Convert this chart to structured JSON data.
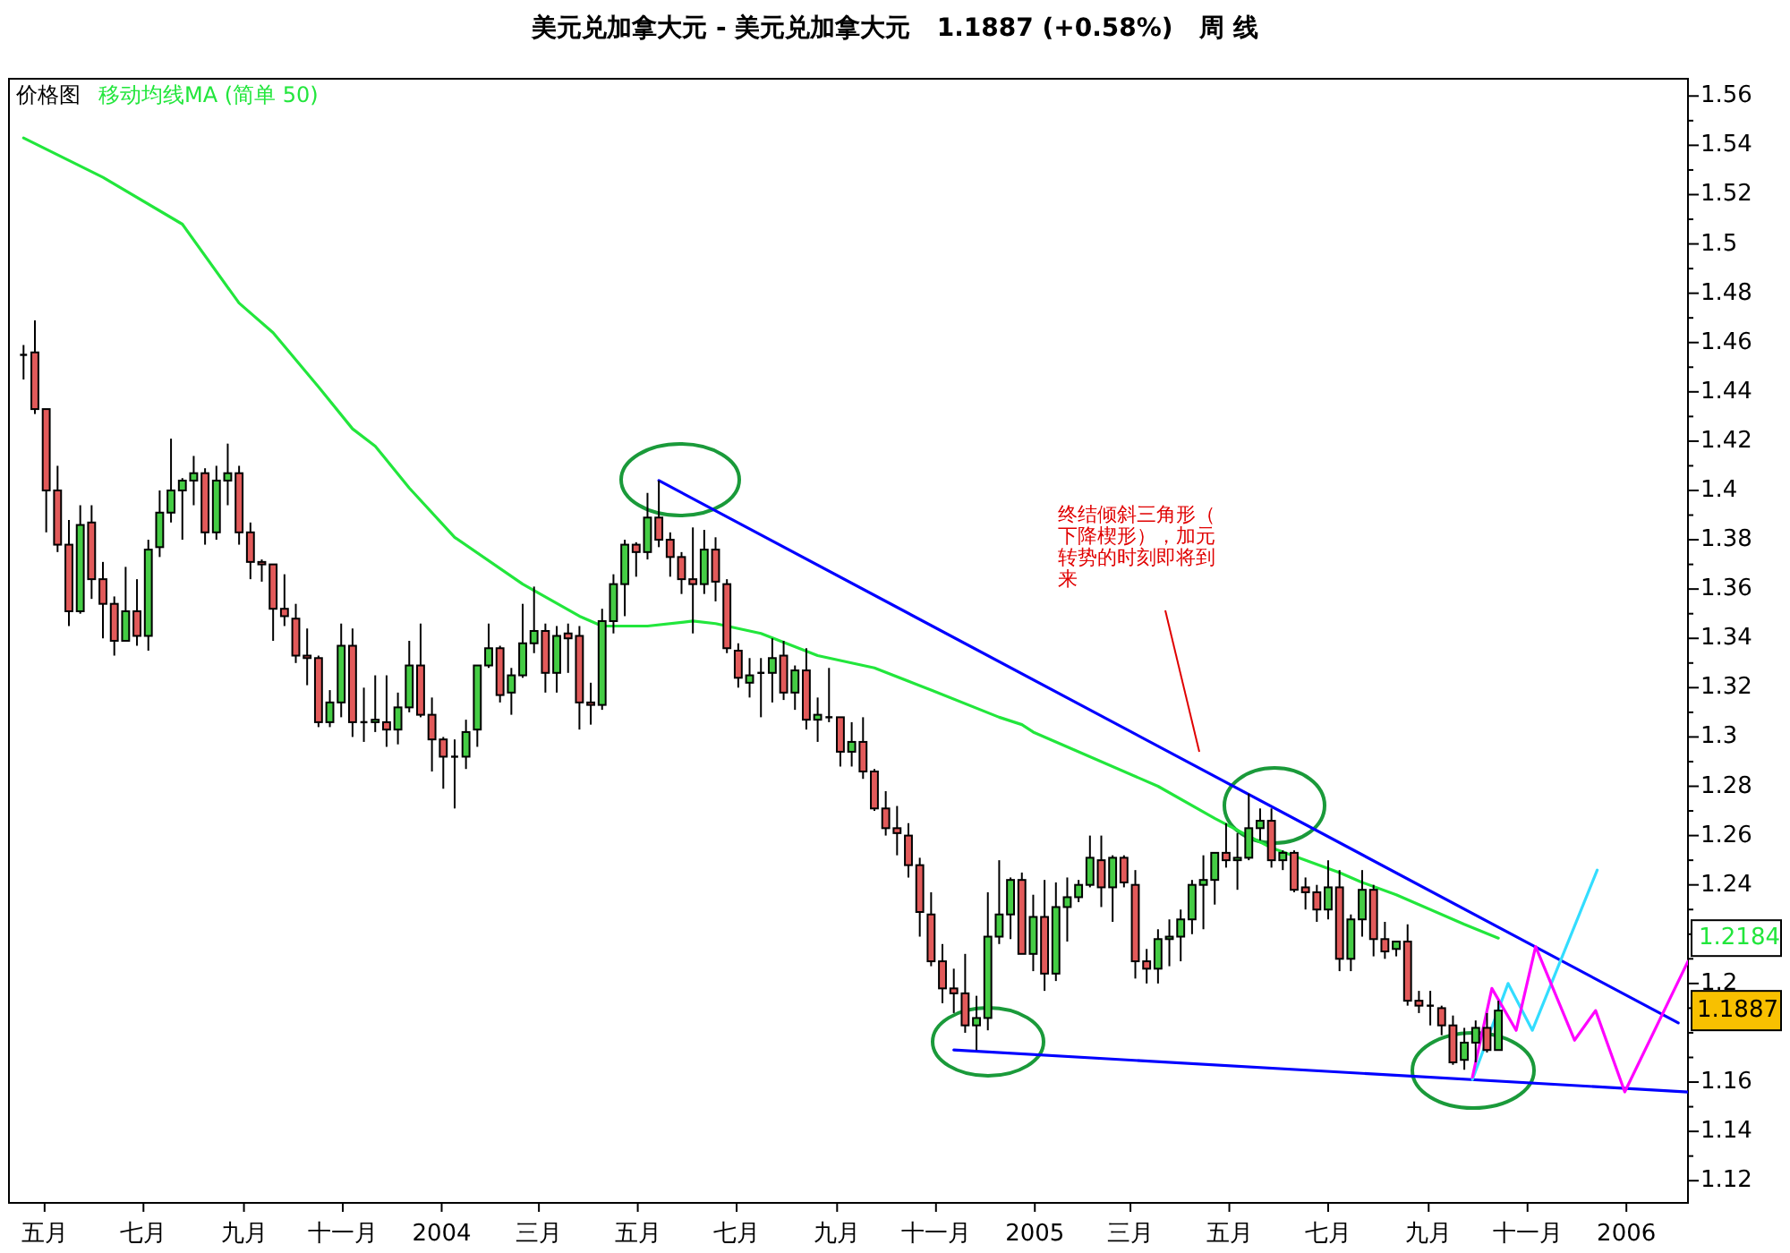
{
  "chart_data": {
    "type": "candlestick",
    "title": "美元兑加拿大元 - 美元兑加拿大元   1.1887 (+0.58%)   周 线",
    "x": [
      "2003-04-18",
      "2003-04-25",
      "2003-05-02",
      "2003-05-09",
      "2003-05-16",
      "2003-05-23",
      "2003-05-30",
      "2003-06-06",
      "2003-06-13",
      "2003-06-20",
      "2003-06-27",
      "2003-07-04",
      "2003-07-11",
      "2003-07-18",
      "2003-07-25",
      "2003-08-01",
      "2003-08-08",
      "2003-08-15",
      "2003-08-22",
      "2003-08-29",
      "2003-09-05",
      "2003-09-12",
      "2003-09-19",
      "2003-09-26",
      "2003-10-03",
      "2003-10-10",
      "2003-10-17",
      "2003-10-24",
      "2003-10-31",
      "2003-11-07",
      "2003-11-14",
      "2003-11-21",
      "2003-11-28",
      "2003-12-05",
      "2003-12-12",
      "2003-12-19",
      "2003-12-26",
      "2004-01-02",
      "2004-01-09",
      "2004-01-16",
      "2004-01-23",
      "2004-01-30",
      "2004-02-06",
      "2004-02-13",
      "2004-02-20",
      "2004-02-27",
      "2004-03-05",
      "2004-03-12",
      "2004-03-19",
      "2004-03-26",
      "2004-04-02",
      "2004-04-09",
      "2004-04-16",
      "2004-04-23",
      "2004-04-30",
      "2004-05-07",
      "2004-05-14",
      "2004-05-21",
      "2004-05-28",
      "2004-06-04",
      "2004-06-11",
      "2004-06-18",
      "2004-06-25",
      "2004-07-02",
      "2004-07-09",
      "2004-07-16",
      "2004-07-23",
      "2004-07-30",
      "2004-08-06",
      "2004-08-13",
      "2004-08-20",
      "2004-08-27",
      "2004-09-03",
      "2004-09-10",
      "2004-09-17",
      "2004-09-24",
      "2004-10-01",
      "2004-10-08",
      "2004-10-15",
      "2004-10-22",
      "2004-10-29",
      "2004-11-05",
      "2004-11-12",
      "2004-11-19",
      "2004-11-26",
      "2004-12-03",
      "2004-12-10",
      "2004-12-17",
      "2004-12-24",
      "2004-12-31",
      "2005-01-07",
      "2005-01-14",
      "2005-01-21",
      "2005-01-28",
      "2005-02-04",
      "2005-02-11",
      "2005-02-18",
      "2005-02-25",
      "2005-03-04",
      "2005-03-11",
      "2005-03-18",
      "2005-03-25",
      "2005-04-01",
      "2005-04-08",
      "2005-04-15",
      "2005-04-22",
      "2005-04-29",
      "2005-05-06",
      "2005-05-13",
      "2005-05-20",
      "2005-05-27",
      "2005-06-03",
      "2005-06-10",
      "2005-06-17",
      "2005-06-24",
      "2005-07-01",
      "2005-07-08",
      "2005-07-15",
      "2005-07-22",
      "2005-07-29",
      "2005-08-05",
      "2005-08-12",
      "2005-08-19",
      "2005-08-26",
      "2005-09-02",
      "2005-09-09",
      "2005-09-16",
      "2005-09-23",
      "2005-09-30",
      "2005-10-07",
      "2005-10-14"
    ],
    "ohlc": [
      [
        1.455,
        1.459,
        1.445,
        1.455
      ],
      [
        1.456,
        1.469,
        1.431,
        1.433
      ],
      [
        1.433,
        1.433,
        1.383,
        1.4
      ],
      [
        1.4,
        1.41,
        1.375,
        1.378
      ],
      [
        1.378,
        1.388,
        1.345,
        1.351
      ],
      [
        1.351,
        1.394,
        1.35,
        1.386
      ],
      [
        1.387,
        1.394,
        1.356,
        1.364
      ],
      [
        1.364,
        1.371,
        1.34,
        1.354
      ],
      [
        1.354,
        1.357,
        1.333,
        1.339
      ],
      [
        1.339,
        1.369,
        1.339,
        1.351
      ],
      [
        1.351,
        1.364,
        1.337,
        1.341
      ],
      [
        1.341,
        1.38,
        1.335,
        1.376
      ],
      [
        1.377,
        1.4,
        1.373,
        1.391
      ],
      [
        1.391,
        1.421,
        1.387,
        1.4
      ],
      [
        1.4,
        1.405,
        1.38,
        1.404
      ],
      [
        1.404,
        1.414,
        1.394,
        1.407
      ],
      [
        1.407,
        1.409,
        1.378,
        1.383
      ],
      [
        1.383,
        1.41,
        1.38,
        1.404
      ],
      [
        1.404,
        1.419,
        1.394,
        1.407
      ],
      [
        1.407,
        1.41,
        1.378,
        1.383
      ],
      [
        1.383,
        1.387,
        1.364,
        1.371
      ],
      [
        1.371,
        1.372,
        1.363,
        1.37
      ],
      [
        1.37,
        1.37,
        1.339,
        1.352
      ],
      [
        1.352,
        1.366,
        1.345,
        1.349
      ],
      [
        1.348,
        1.354,
        1.33,
        1.333
      ],
      [
        1.333,
        1.344,
        1.321,
        1.332
      ],
      [
        1.332,
        1.333,
        1.304,
        1.306
      ],
      [
        1.306,
        1.319,
        1.304,
        1.314
      ],
      [
        1.314,
        1.346,
        1.308,
        1.337
      ],
      [
        1.337,
        1.344,
        1.3,
        1.306
      ],
      [
        1.306,
        1.32,
        1.298,
        1.306
      ],
      [
        1.306,
        1.325,
        1.302,
        1.307
      ],
      [
        1.306,
        1.325,
        1.296,
        1.303
      ],
      [
        1.303,
        1.318,
        1.297,
        1.312
      ],
      [
        1.312,
        1.339,
        1.31,
        1.329
      ],
      [
        1.329,
        1.346,
        1.308,
        1.309
      ],
      [
        1.309,
        1.316,
        1.286,
        1.299
      ],
      [
        1.299,
        1.3,
        1.279,
        1.292
      ],
      [
        1.292,
        1.299,
        1.271,
        1.292
      ],
      [
        1.292,
        1.307,
        1.287,
        1.302
      ],
      [
        1.303,
        1.329,
        1.296,
        1.329
      ],
      [
        1.329,
        1.346,
        1.328,
        1.336
      ],
      [
        1.336,
        1.337,
        1.314,
        1.317
      ],
      [
        1.318,
        1.328,
        1.309,
        1.325
      ],
      [
        1.325,
        1.354,
        1.324,
        1.338
      ],
      [
        1.338,
        1.361,
        1.334,
        1.343
      ],
      [
        1.343,
        1.346,
        1.318,
        1.326
      ],
      [
        1.326,
        1.345,
        1.318,
        1.341
      ],
      [
        1.342,
        1.346,
        1.326,
        1.34
      ],
      [
        1.341,
        1.345,
        1.303,
        1.314
      ],
      [
        1.314,
        1.322,
        1.305,
        1.313
      ],
      [
        1.313,
        1.352,
        1.311,
        1.347
      ],
      [
        1.347,
        1.366,
        1.342,
        1.362
      ],
      [
        1.362,
        1.38,
        1.349,
        1.378
      ],
      [
        1.378,
        1.379,
        1.365,
        1.375
      ],
      [
        1.375,
        1.399,
        1.372,
        1.389
      ],
      [
        1.389,
        1.404,
        1.377,
        1.38
      ],
      [
        1.38,
        1.383,
        1.365,
        1.373
      ],
      [
        1.373,
        1.375,
        1.358,
        1.364
      ],
      [
        1.364,
        1.385,
        1.342,
        1.362
      ],
      [
        1.362,
        1.384,
        1.358,
        1.376
      ],
      [
        1.376,
        1.381,
        1.355,
        1.363
      ],
      [
        1.362,
        1.364,
        1.334,
        1.336
      ],
      [
        1.335,
        1.338,
        1.32,
        1.324
      ],
      [
        1.322,
        1.332,
        1.316,
        1.325
      ],
      [
        1.326,
        1.332,
        1.308,
        1.326
      ],
      [
        1.326,
        1.34,
        1.314,
        1.332
      ],
      [
        1.333,
        1.339,
        1.315,
        1.318
      ],
      [
        1.318,
        1.329,
        1.311,
        1.327
      ],
      [
        1.327,
        1.336,
        1.303,
        1.307
      ],
      [
        1.307,
        1.316,
        1.298,
        1.309
      ],
      [
        1.308,
        1.328,
        1.306,
        1.308
      ],
      [
        1.308,
        1.308,
        1.288,
        1.294
      ],
      [
        1.294,
        1.306,
        1.288,
        1.298
      ],
      [
        1.298,
        1.308,
        1.283,
        1.286
      ],
      [
        1.286,
        1.287,
        1.27,
        1.271
      ],
      [
        1.271,
        1.278,
        1.26,
        1.263
      ],
      [
        1.263,
        1.272,
        1.252,
        1.261
      ],
      [
        1.26,
        1.265,
        1.243,
        1.248
      ],
      [
        1.248,
        1.251,
        1.219,
        1.229
      ],
      [
        1.228,
        1.237,
        1.207,
        1.209
      ],
      [
        1.209,
        1.216,
        1.192,
        1.198
      ],
      [
        1.198,
        1.206,
        1.188,
        1.196
      ],
      [
        1.196,
        1.212,
        1.18,
        1.183
      ],
      [
        1.183,
        1.195,
        1.173,
        1.186
      ],
      [
        1.186,
        1.237,
        1.181,
        1.219
      ],
      [
        1.219,
        1.25,
        1.216,
        1.228
      ],
      [
        1.228,
        1.243,
        1.218,
        1.242
      ],
      [
        1.242,
        1.245,
        1.212,
        1.212
      ],
      [
        1.212,
        1.236,
        1.205,
        1.227
      ],
      [
        1.227,
        1.242,
        1.197,
        1.204
      ],
      [
        1.204,
        1.241,
        1.201,
        1.231
      ],
      [
        1.231,
        1.243,
        1.217,
        1.235
      ],
      [
        1.235,
        1.242,
        1.233,
        1.24
      ],
      [
        1.24,
        1.26,
        1.239,
        1.251
      ],
      [
        1.25,
        1.26,
        1.231,
        1.239
      ],
      [
        1.239,
        1.252,
        1.225,
        1.251
      ],
      [
        1.251,
        1.252,
        1.239,
        1.241
      ],
      [
        1.24,
        1.246,
        1.202,
        1.209
      ],
      [
        1.209,
        1.214,
        1.2,
        1.206
      ],
      [
        1.206,
        1.222,
        1.2,
        1.218
      ],
      [
        1.218,
        1.226,
        1.207,
        1.219
      ],
      [
        1.219,
        1.23,
        1.209,
        1.226
      ],
      [
        1.226,
        1.242,
        1.22,
        1.24
      ],
      [
        1.24,
        1.252,
        1.222,
        1.242
      ],
      [
        1.242,
        1.253,
        1.232,
        1.253
      ],
      [
        1.253,
        1.265,
        1.247,
        1.25
      ],
      [
        1.25,
        1.261,
        1.238,
        1.251
      ],
      [
        1.251,
        1.277,
        1.25,
        1.263
      ],
      [
        1.263,
        1.271,
        1.258,
        1.266
      ],
      [
        1.266,
        1.271,
        1.247,
        1.25
      ],
      [
        1.25,
        1.254,
        1.246,
        1.253
      ],
      [
        1.253,
        1.254,
        1.237,
        1.238
      ],
      [
        1.239,
        1.243,
        1.23,
        1.237
      ],
      [
        1.237,
        1.24,
        1.225,
        1.23
      ],
      [
        1.23,
        1.25,
        1.226,
        1.239
      ],
      [
        1.239,
        1.246,
        1.205,
        1.21
      ],
      [
        1.21,
        1.228,
        1.205,
        1.226
      ],
      [
        1.226,
        1.246,
        1.219,
        1.238
      ],
      [
        1.238,
        1.24,
        1.211,
        1.218
      ],
      [
        1.218,
        1.225,
        1.21,
        1.213
      ],
      [
        1.214,
        1.217,
        1.211,
        1.217
      ],
      [
        1.217,
        1.224,
        1.191,
        1.193
      ],
      [
        1.193,
        1.197,
        1.188,
        1.191
      ],
      [
        1.191,
        1.197,
        1.183,
        1.191
      ],
      [
        1.19,
        1.191,
        1.179,
        1.183
      ],
      [
        1.183,
        1.187,
        1.167,
        1.168
      ],
      [
        1.169,
        1.182,
        1.165,
        1.176
      ],
      [
        1.176,
        1.185,
        1.168,
        1.182
      ],
      [
        1.182,
        1.188,
        1.172,
        1.173
      ],
      [
        1.173,
        1.193,
        1.173,
        1.189
      ]
    ],
    "series": [
      {
        "type": "line",
        "name": "移动均线MA (简单 50)",
        "color": "#22e63c",
        "x": [
          "2003-04-18",
          "2003-06-06",
          "2003-07-25",
          "2003-08-29",
          "2003-09-19",
          "2003-10-17",
          "2003-11-07",
          "2003-11-21",
          "2003-12-12",
          "2004-01-09",
          "2004-02-20",
          "2004-03-26",
          "2004-04-09",
          "2004-05-07",
          "2004-06-04",
          "2004-06-18",
          "2004-07-16",
          "2004-08-20",
          "2004-09-24",
          "2004-10-29",
          "2004-12-10",
          "2004-12-24",
          "2004-12-31",
          "2005-01-14",
          "2005-03-18",
          "2005-04-22",
          "2005-05-27",
          "2005-07-08",
          "2005-07-22",
          "2005-08-12",
          "2005-08-26",
          "2005-09-23",
          "2005-10-14"
        ],
        "values": [
          1.543,
          1.527,
          1.508,
          1.476,
          1.464,
          1.442,
          1.425,
          1.418,
          1.401,
          1.381,
          1.362,
          1.349,
          1.345,
          1.345,
          1.347,
          1.346,
          1.342,
          1.333,
          1.328,
          1.319,
          1.308,
          1.305,
          1.302,
          1.298,
          1.28,
          1.267,
          1.255,
          1.245,
          1.241,
          1.236,
          1.232,
          1.224,
          1.2184
        ]
      },
      {
        "type": "line",
        "color": "#0000ff",
        "x": [
          "2004-05-14",
          "2006-02-02"
        ],
        "values": [
          1.404,
          1.184
        ]
      },
      {
        "type": "line",
        "color": "#0000ff",
        "x": [
          "2004-11-12",
          "2006-02-08"
        ],
        "values": [
          1.173,
          1.156
        ]
      },
      {
        "type": "line",
        "color": "#33ddff",
        "x": [
          "2005-09-28",
          "2005-10-20",
          "2005-11-04",
          "2005-12-14"
        ],
        "values": [
          1.161,
          1.2,
          1.181,
          1.246
        ]
      },
      {
        "type": "line",
        "color": "#ff00ff",
        "x": [
          "2005-09-28",
          "2005-10-10",
          "2005-10-25",
          "2005-11-06",
          "2005-11-30",
          "2005-12-13",
          "2005-12-31",
          "2006-02-08"
        ],
        "values": [
          1.162,
          1.198,
          1.181,
          1.215,
          1.177,
          1.189,
          1.156,
          1.209
        ]
      }
    ],
    "xlim": [
      "2003-04-09",
      "2006-02-08"
    ],
    "xticks": [
      {
        "value": "2003-05-01",
        "label": "五月"
      },
      {
        "value": "2003-07-01",
        "label": "七月"
      },
      {
        "value": "2003-09-01",
        "label": "九月"
      },
      {
        "value": "2003-11-01",
        "label": "十一月"
      },
      {
        "value": "2004-01-01",
        "label": "2004"
      },
      {
        "value": "2004-03-01",
        "label": "三月"
      },
      {
        "value": "2004-05-01",
        "label": "五月"
      },
      {
        "value": "2004-07-01",
        "label": "七月"
      },
      {
        "value": "2004-09-01",
        "label": "九月"
      },
      {
        "value": "2004-11-01",
        "label": "十一月"
      },
      {
        "value": "2005-01-01",
        "label": "2005"
      },
      {
        "value": "2005-03-01",
        "label": "三月"
      },
      {
        "value": "2005-05-01",
        "label": "五月"
      },
      {
        "value": "2005-07-01",
        "label": "七月"
      },
      {
        "value": "2005-09-01",
        "label": "九月"
      },
      {
        "value": "2005-11-01",
        "label": "十一月"
      },
      {
        "value": "2006-01-01",
        "label": "2006"
      }
    ],
    "ylim": [
      1.111,
      1.567
    ],
    "yticks": [
      1.12,
      1.14,
      1.16,
      {
        "value": 1.18,
        "label": null
      },
      1.2,
      {
        "value": 1.22,
        "label": null
      },
      1.24,
      1.26,
      1.28,
      1.3,
      1.32,
      1.34,
      1.36,
      1.38,
      1.4,
      1.42,
      1.44,
      1.46,
      1.48,
      1.5,
      1.52,
      1.54,
      1.56,
      {
        "value": 1.13,
        "label": null
      },
      {
        "value": 1.15,
        "label": null
      },
      {
        "value": 1.17,
        "label": null
      },
      {
        "value": 1.19,
        "label": null
      },
      {
        "value": 1.21,
        "label": null
      },
      {
        "value": 1.23,
        "label": null
      },
      {
        "value": 1.25,
        "label": null
      },
      {
        "value": 1.27,
        "label": null
      },
      {
        "value": 1.29,
        "label": null
      },
      {
        "value": 1.31,
        "label": null
      },
      {
        "value": 1.33,
        "label": null
      },
      {
        "value": 1.35,
        "label": null
      },
      {
        "value": 1.37,
        "label": null
      },
      {
        "value": 1.39,
        "label": null
      },
      {
        "value": 1.41,
        "label": null
      },
      {
        "value": 1.43,
        "label": null
      },
      {
        "value": 1.45,
        "label": null
      },
      {
        "value": 1.47,
        "label": null
      },
      {
        "value": 1.49,
        "label": null
      },
      {
        "value": 1.51,
        "label": null
      },
      {
        "value": 1.53,
        "label": null
      },
      {
        "value": 1.55,
        "label": null
      }
    ],
    "legend": "top left",
    "annotations": [
      "价格图",
      "终结倾斜三角形（下降楔形），加元转势的时刻即将到来",
      "1.2184",
      "1.1887"
    ]
  }
}
